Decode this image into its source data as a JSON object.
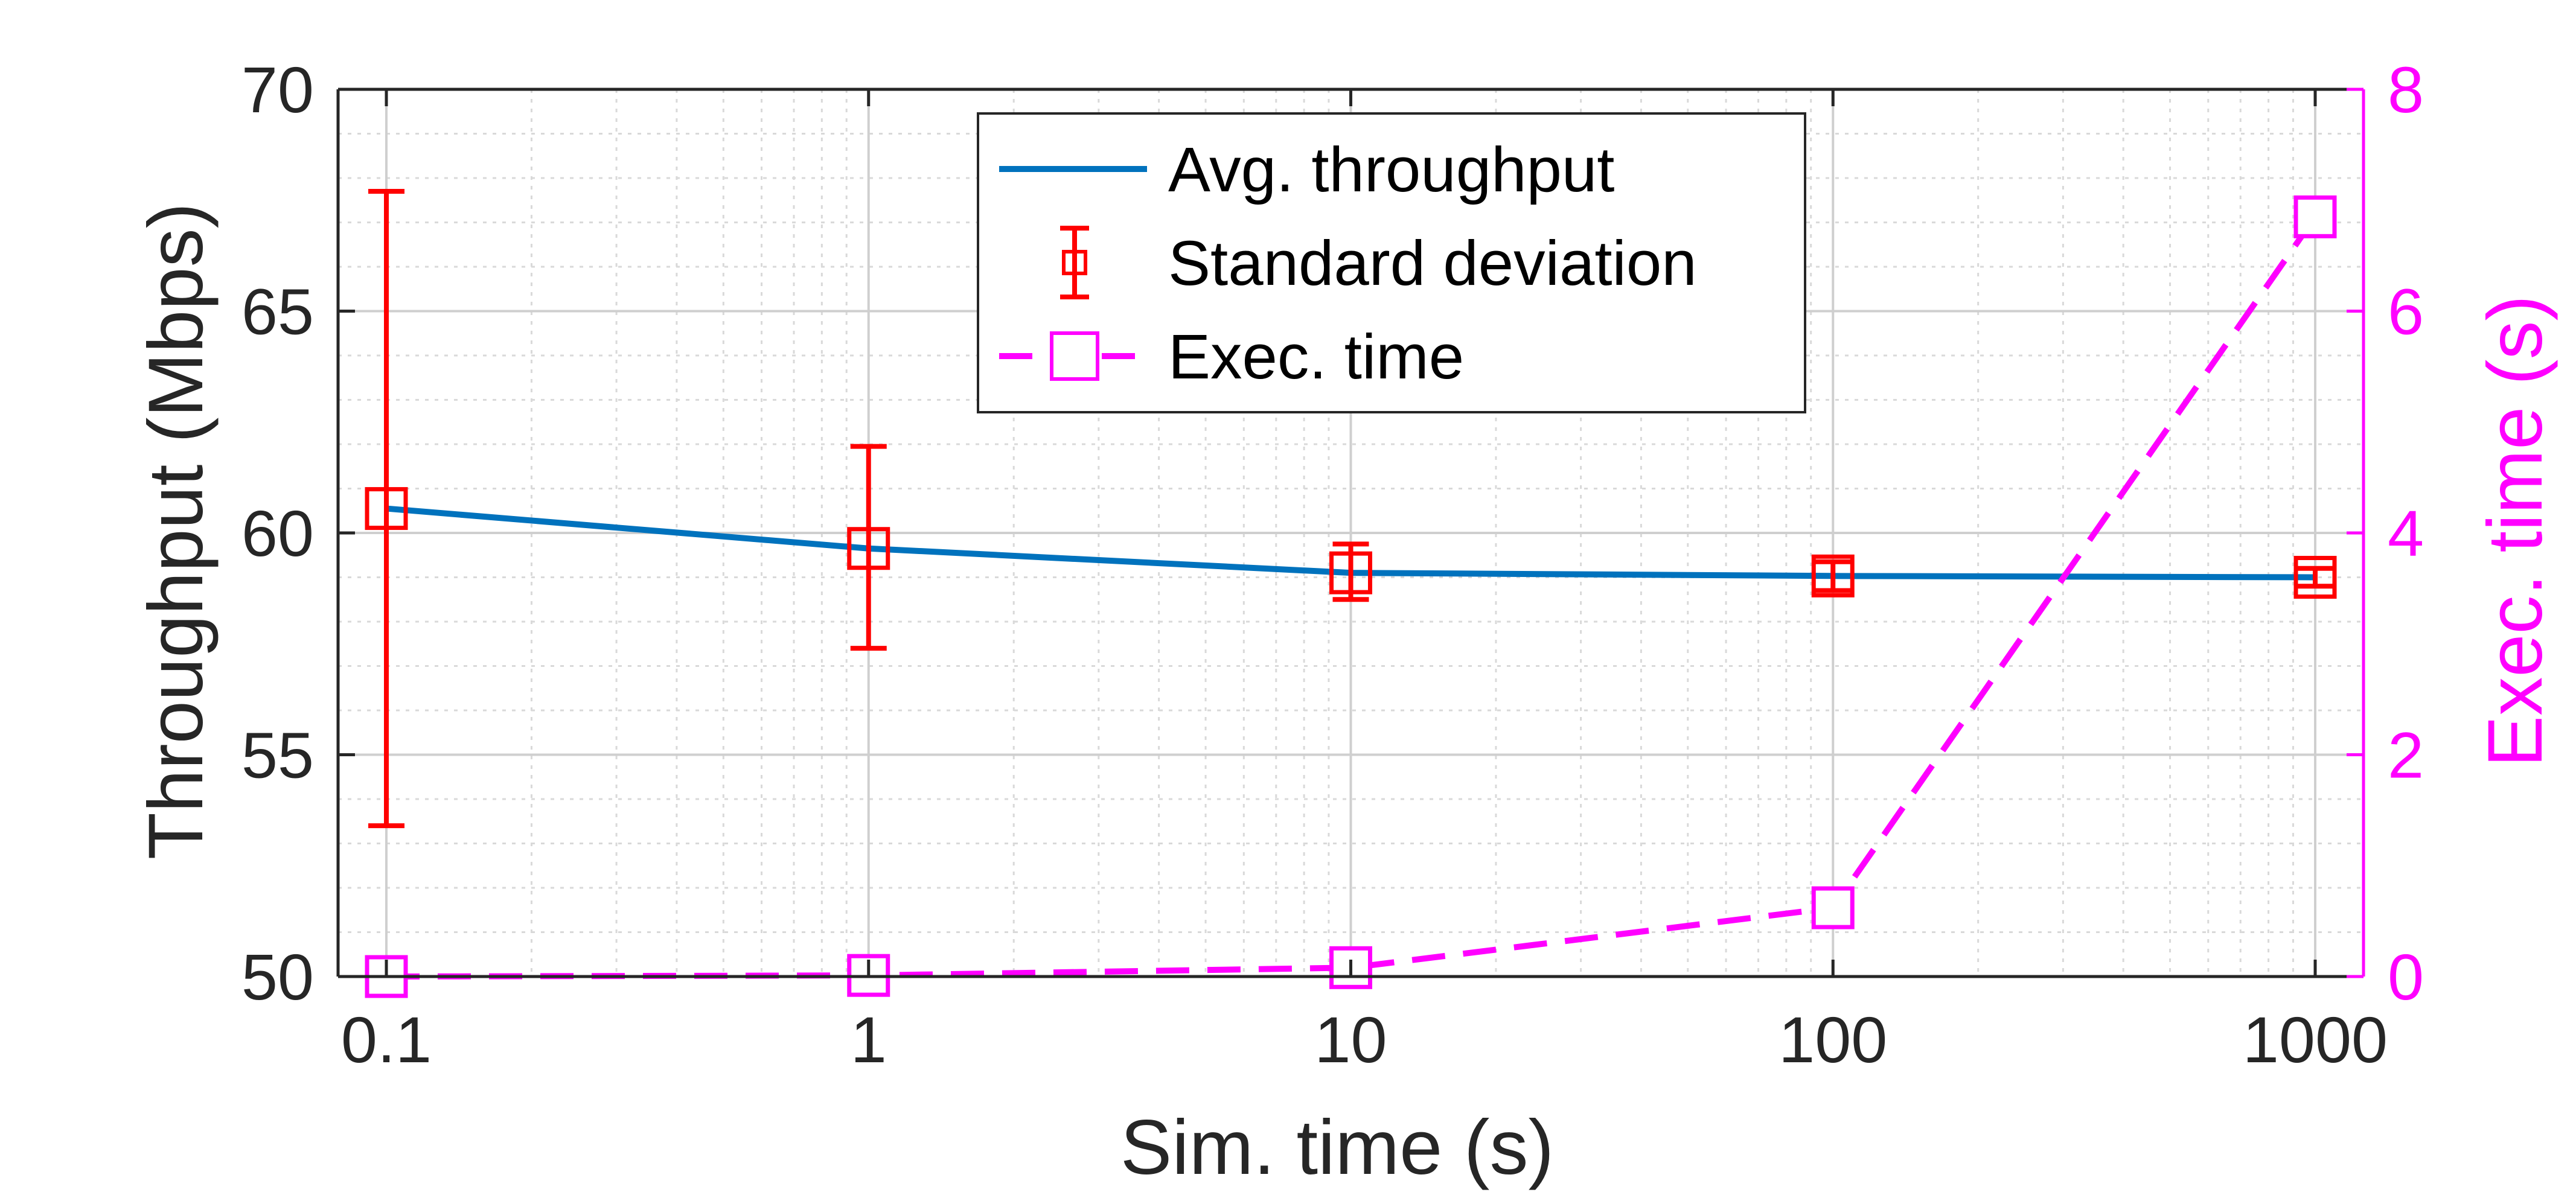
{
  "chart_data": {
    "type": "line",
    "xlabel": "Sim. time (s)",
    "ylabel": "Throughput (Mbps)",
    "y2label": "Exec. time (s)",
    "xscale": "log",
    "x": [
      0.1,
      1,
      10,
      100,
      1000
    ],
    "xticks": [
      "0.1",
      "1",
      "10",
      "100",
      "1000"
    ],
    "xlim": [
      0.1,
      1000
    ],
    "ylim": [
      50,
      70
    ],
    "yticks": [
      "50",
      "55",
      "60",
      "65",
      "70"
    ],
    "y2lim": [
      0,
      8
    ],
    "y2ticks": [
      "0",
      "2",
      "4",
      "6",
      "8"
    ],
    "grid": true,
    "minor_grid": true,
    "legend_position": "top-center",
    "series": [
      {
        "name": "Avg. throughput",
        "axis": "left",
        "style": "solid",
        "color": "#0072BD",
        "values": [
          60.55,
          59.65,
          59.1,
          59.03,
          59.0
        ]
      },
      {
        "name": "Standard deviation",
        "axis": "left",
        "style": "errorbar",
        "color": "#FF0000",
        "values": [
          60.55,
          59.65,
          59.1,
          59.03,
          59.0
        ],
        "lower": [
          53.4,
          57.4,
          58.5,
          58.7,
          58.8
        ],
        "upper": [
          67.7,
          61.95,
          59.75,
          59.35,
          59.2
        ]
      },
      {
        "name": "Exec. time",
        "axis": "right",
        "style": "dashed",
        "color": "#FF00FF",
        "values": [
          0.0,
          0.01,
          0.08,
          0.62,
          6.85
        ]
      }
    ]
  }
}
